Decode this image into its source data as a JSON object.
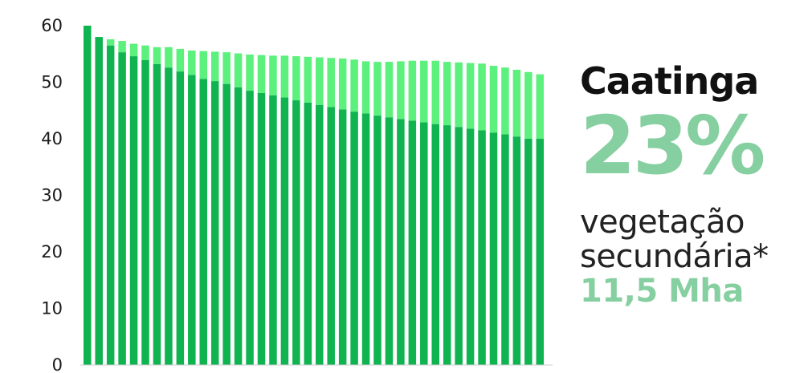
{
  "colors": {
    "primary_vegetation": "#0fb350",
    "secondary_vegetation": "#5cf07d",
    "highlight": "#86cfa0",
    "axis": "#cccccc"
  },
  "panel": {
    "region": "Caatinga",
    "percent": "23%",
    "desc_line1": "vegetação",
    "desc_line2": "secundária*",
    "area": "11,5 Mha"
  },
  "chart_data": {
    "type": "bar",
    "stacked": true,
    "ylim": [
      0,
      60
    ],
    "yticks": [
      "0",
      "10",
      "20",
      "30",
      "40",
      "50",
      "60"
    ],
    "legend": "none",
    "grid": false,
    "series": [
      {
        "values": [
          60,
          58,
          56.5,
          55.3,
          54.6,
          53.9,
          53.2,
          52.6,
          51.9,
          51.3,
          50.6,
          50.2,
          49.7,
          49.1,
          48.5,
          48.1,
          47.7,
          47.3,
          46.8,
          46.4,
          46.0,
          45.6,
          45.2,
          44.8,
          44.5,
          44.1,
          43.8,
          43.5,
          43.2,
          42.9,
          42.6,
          42.4,
          42.1,
          41.8,
          41.5,
          41.1,
          40.8,
          40.4,
          40.0,
          40.0
        ]
      },
      {
        "values": [
          0,
          0,
          1.1,
          2.0,
          2.2,
          2.6,
          3.0,
          3.6,
          4.0,
          4.3,
          4.9,
          5.2,
          5.6,
          6.0,
          6.4,
          6.7,
          7.0,
          7.4,
          7.8,
          8.1,
          8.4,
          8.7,
          9.0,
          9.2,
          9.2,
          9.5,
          9.8,
          10.2,
          10.6,
          10.9,
          11.2,
          11.2,
          11.4,
          11.6,
          11.8,
          11.8,
          11.8,
          11.8,
          11.8,
          11.4
        ]
      }
    ]
  }
}
